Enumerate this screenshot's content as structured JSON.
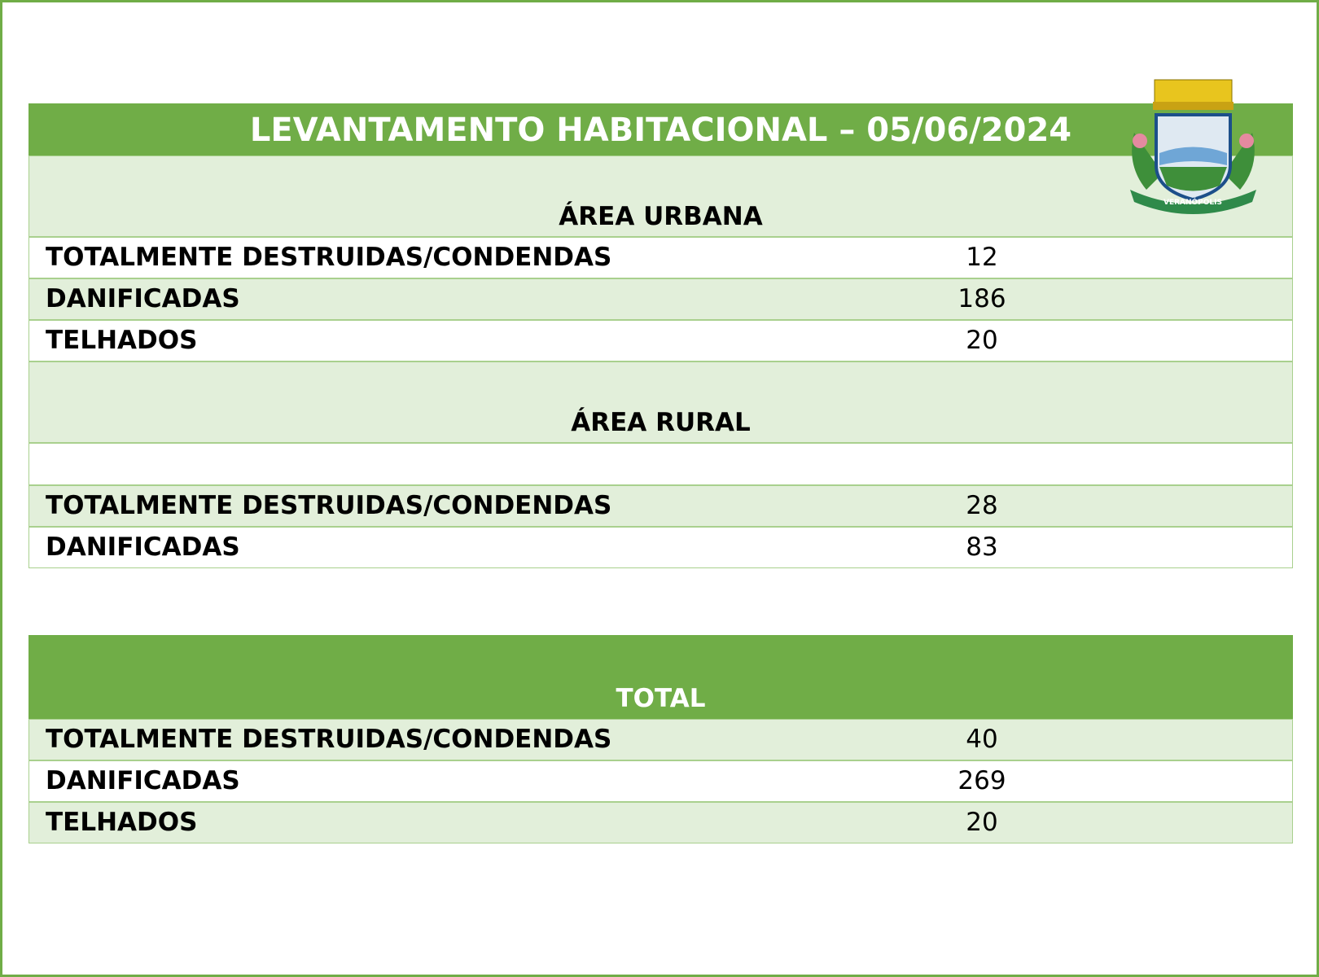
{
  "title": "LEVANTAMENTO HABITACIONAL – 05/06/2024",
  "emblem_text": "VERANÓPOLIS",
  "sections": [
    {
      "heading": "ÁREA URBANA",
      "rows": [
        {
          "label": "TOTALMENTE DESTRUIDAS/CONDENDAS",
          "value": 12
        },
        {
          "label": "DANIFICADAS",
          "value": 186
        },
        {
          "label": "TELHADOS",
          "value": 20
        }
      ]
    },
    {
      "heading": "ÁREA RURAL",
      "rows": [
        {
          "label": "TOTALMENTE DESTRUIDAS/CONDENDAS",
          "value": 28
        },
        {
          "label": "DANIFICADAS",
          "value": 83
        }
      ]
    },
    {
      "heading": "TOTAL",
      "rows": [
        {
          "label": "TOTALMENTE DESTRUIDAS/CONDENDAS",
          "value": 40
        },
        {
          "label": "DANIFICADAS",
          "value": 269
        },
        {
          "label": "TELHADOS",
          "value": 20
        }
      ]
    }
  ]
}
